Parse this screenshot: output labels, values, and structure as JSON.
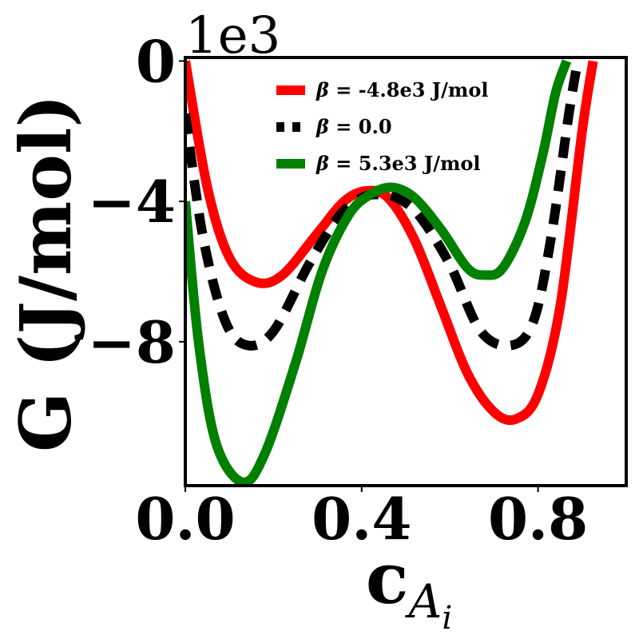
{
  "chart_data": {
    "type": "line",
    "title": "",
    "xlabel": "c",
    "xlabel_sub": "A",
    "xlabel_subsub": "i",
    "ylabel": "G (J/mol)",
    "y_offset_text": "1e3",
    "xlim": [
      0.0,
      1.0
    ],
    "ylim": [
      -12.1,
      0.1
    ],
    "xticks": [
      0.0,
      0.4,
      0.8
    ],
    "xtick_labels": [
      "0.0",
      "0.4",
      "0.8"
    ],
    "yticks": [
      0,
      -4,
      -8
    ],
    "ytick_labels": [
      "0",
      "−4",
      "−8"
    ],
    "grid": false,
    "legend_position": "upper-center",
    "series": [
      {
        "name": "β = -4.8e3 J/mol",
        "legend_symbol": "β",
        "legend_rest": " = -4.8e3 J/mol",
        "color": "#ff0000",
        "dashed": false,
        "x": [
          0.0,
          0.05,
          0.1,
          0.16,
          0.22,
          0.3,
          0.36,
          0.41,
          0.46,
          0.52,
          0.58,
          0.64,
          0.7,
          0.75,
          0.8,
          0.85,
          0.9,
          0.925
        ],
        "y": [
          0.0,
          -3.6,
          -5.6,
          -6.3,
          -6.1,
          -4.9,
          -4.0,
          -3.7,
          -3.9,
          -5.1,
          -7.0,
          -8.9,
          -10.0,
          -10.2,
          -9.5,
          -7.0,
          -2.0,
          0.0
        ]
      },
      {
        "name": "β = 0.0",
        "legend_symbol": "β",
        "legend_rest": " = 0.0",
        "color": "#000000",
        "dashed": true,
        "x": [
          0.0,
          0.04,
          0.09,
          0.14,
          0.2,
          0.28,
          0.35,
          0.4,
          0.44,
          0.48,
          0.53,
          0.6,
          0.67,
          0.74,
          0.79,
          0.83,
          0.87,
          0.89
        ],
        "y": [
          -1.5,
          -5.0,
          -7.4,
          -8.1,
          -7.7,
          -5.8,
          -4.4,
          -3.9,
          -3.8,
          -3.9,
          -4.4,
          -5.8,
          -7.7,
          -8.1,
          -7.4,
          -5.0,
          -1.5,
          0.0
        ]
      },
      {
        "name": "β = 5.3e3 J/mol",
        "legend_symbol": "β",
        "legend_rest": " = 5.3e3 J/mol",
        "color": "#008000",
        "dashed": false,
        "x": [
          0.0,
          0.03,
          0.07,
          0.13,
          0.18,
          0.25,
          0.31,
          0.37,
          0.42,
          0.47,
          0.52,
          0.58,
          0.64,
          0.68,
          0.72,
          0.77,
          0.81,
          0.84,
          0.865
        ],
        "y": [
          -4.0,
          -8.0,
          -10.9,
          -12.0,
          -11.2,
          -8.6,
          -6.0,
          -4.4,
          -3.8,
          -3.6,
          -3.9,
          -4.8,
          -5.9,
          -6.1,
          -5.9,
          -4.6,
          -2.7,
          -0.9,
          0.0
        ]
      }
    ]
  }
}
